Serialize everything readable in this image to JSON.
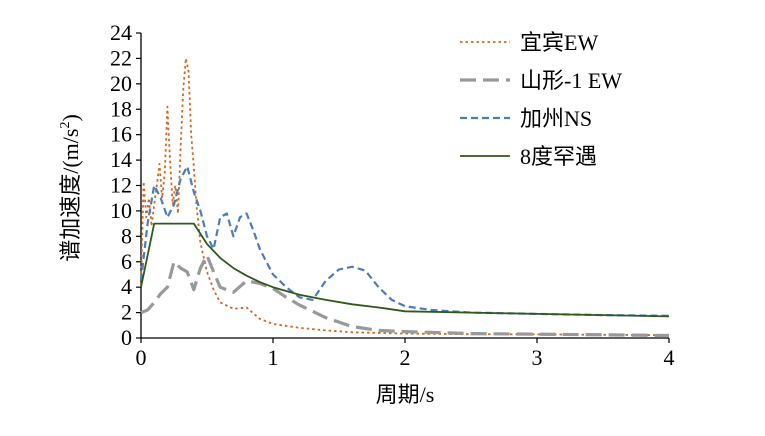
{
  "chart_data": {
    "type": "line",
    "xlabel": "周期/s",
    "ylabel_main": "谱加速度/(m/s",
    "ylabel_sup": "2",
    "ylabel_close": ")",
    "xlim": [
      0,
      4
    ],
    "ylim": [
      0,
      24
    ],
    "x_ticks": [
      "0",
      "1",
      "2",
      "3",
      "4"
    ],
    "y_ticks": [
      "0",
      "2",
      "4",
      "6",
      "8",
      "10",
      "12",
      "14",
      "16",
      "18",
      "20",
      "22",
      "24"
    ],
    "grid": false,
    "legend_position": "top-right",
    "series": [
      {
        "name": "宜宾EW",
        "color": "#d2691e",
        "style": "dotted",
        "x": [
          0,
          0.02,
          0.04,
          0.06,
          0.08,
          0.1,
          0.12,
          0.14,
          0.16,
          0.18,
          0.2,
          0.22,
          0.24,
          0.26,
          0.28,
          0.3,
          0.32,
          0.34,
          0.36,
          0.38,
          0.4,
          0.42,
          0.45,
          0.5,
          0.55,
          0.6,
          0.7,
          0.8,
          0.9,
          1.0,
          1.2,
          1.4,
          1.6,
          1.8,
          2.0,
          2.5,
          3.0,
          3.5,
          4.0
        ],
        "y": [
          4.2,
          12.3,
          9.5,
          11.0,
          8.8,
          10.5,
          12.0,
          13.7,
          11.0,
          13.0,
          18.2,
          14.0,
          10.5,
          12.0,
          9.8,
          15.0,
          19.5,
          22.0,
          21.0,
          16.0,
          13.5,
          10.5,
          7.5,
          5.2,
          3.8,
          2.8,
          2.3,
          2.4,
          1.5,
          1.1,
          0.8,
          0.6,
          0.45,
          0.4,
          0.35,
          0.3,
          0.28,
          0.25,
          0.22
        ]
      },
      {
        "name": "山形-1 EW",
        "color": "#999999",
        "style": "longdash",
        "x": [
          0,
          0.05,
          0.1,
          0.15,
          0.2,
          0.25,
          0.3,
          0.35,
          0.4,
          0.45,
          0.5,
          0.55,
          0.6,
          0.7,
          0.8,
          0.9,
          1.0,
          1.1,
          1.2,
          1.4,
          1.6,
          1.8,
          2.0,
          2.5,
          3.0,
          3.5,
          4.0
        ],
        "y": [
          2.0,
          2.2,
          2.8,
          3.5,
          4.0,
          6.0,
          5.5,
          5.2,
          3.8,
          5.5,
          6.5,
          5.2,
          4.0,
          3.6,
          4.5,
          4.3,
          3.9,
          3.2,
          2.6,
          1.6,
          0.9,
          0.6,
          0.5,
          0.35,
          0.3,
          0.25,
          0.2
        ]
      },
      {
        "name": "加州NS",
        "color": "#4a7ebb",
        "style": "dashed",
        "x": [
          0,
          0.05,
          0.1,
          0.15,
          0.2,
          0.25,
          0.3,
          0.35,
          0.4,
          0.45,
          0.5,
          0.55,
          0.6,
          0.65,
          0.7,
          0.75,
          0.8,
          0.85,
          0.9,
          0.95,
          1.0,
          1.05,
          1.1,
          1.2,
          1.3,
          1.4,
          1.5,
          1.6,
          1.7,
          1.8,
          1.9,
          2.0,
          2.2,
          2.5,
          3.0,
          3.5,
          4.0
        ],
        "y": [
          4.5,
          9.0,
          12.0,
          11.0,
          9.5,
          10.5,
          12.5,
          13.5,
          11.5,
          10.0,
          8.0,
          7.0,
          9.5,
          9.8,
          8.0,
          9.5,
          9.8,
          8.5,
          7.0,
          6.0,
          5.0,
          4.5,
          4.0,
          3.2,
          3.0,
          4.5,
          5.4,
          5.6,
          5.3,
          4.0,
          3.0,
          2.5,
          2.2,
          2.0,
          1.9,
          1.8,
          1.75
        ]
      },
      {
        "name": "8度罕遇",
        "color": "#2e5a1c",
        "style": "solid",
        "x": [
          0,
          0.1,
          0.4,
          0.5,
          0.6,
          0.7,
          0.8,
          0.9,
          1.0,
          1.2,
          1.4,
          1.6,
          1.8,
          2.0,
          2.5,
          3.0,
          3.5,
          4.0
        ],
        "y": [
          4.0,
          9.0,
          9.0,
          7.4,
          6.3,
          5.5,
          4.9,
          4.4,
          4.0,
          3.4,
          3.0,
          2.65,
          2.4,
          2.1,
          2.0,
          1.9,
          1.8,
          1.7
        ]
      }
    ]
  }
}
